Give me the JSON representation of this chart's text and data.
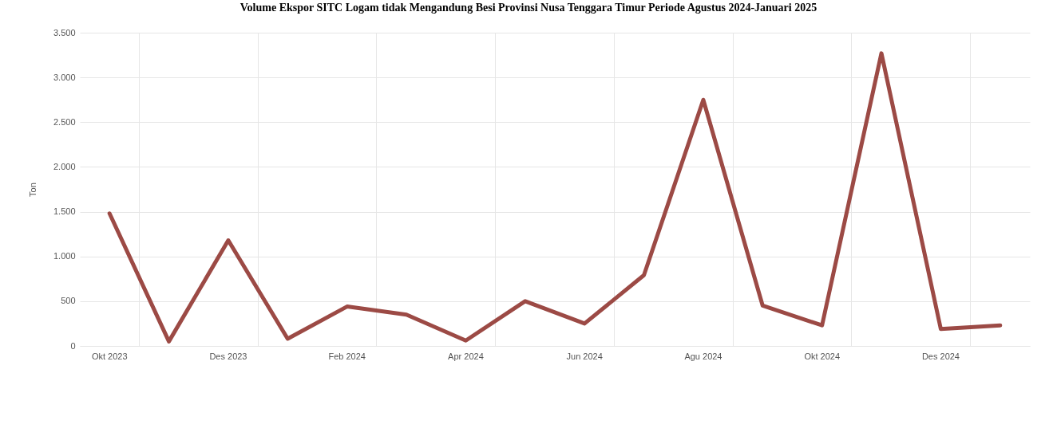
{
  "chart_data": {
    "type": "line",
    "title": "Volume Ekspor SITC Logam tidak Mengandung Besi Provinsi Nusa Tenggara Timur Periode Agustus 2024-Januari 2025",
    "ylabel": "Ton",
    "categories": [
      "Okt 2023",
      null,
      "Des 2023",
      null,
      "Feb 2024",
      null,
      "Apr 2024",
      null,
      "Jun 2024",
      null,
      "Agu 2024",
      null,
      "Okt 2024",
      null,
      "Des 2024",
      null
    ],
    "series": [
      {
        "color": "#9c4a45",
        "values": [
          1480,
          50,
          1180,
          80,
          440,
          350,
          60,
          500,
          250,
          790,
          2750,
          450,
          230,
          3270,
          190,
          230
        ]
      }
    ],
    "ylim": [
      0,
      3500
    ],
    "yticks": [
      0,
      500,
      {
        "value": 1000,
        "label": "1.000"
      },
      {
        "value": 1500,
        "label": "1.500"
      },
      {
        "value": 2000,
        "label": "2.000"
      },
      {
        "value": 2500,
        "label": "2.500"
      },
      {
        "value": 3000,
        "label": "3.000"
      },
      {
        "value": 3500,
        "label": "3.500"
      }
    ],
    "grid": true
  }
}
